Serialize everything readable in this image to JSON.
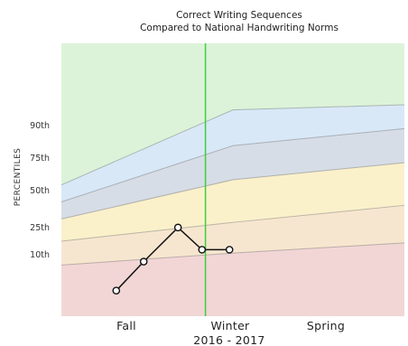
{
  "chart_data": {
    "type": "line",
    "title": "Correct Writing Sequences",
    "subtitle": "Compared to National Handwriting Norms",
    "ylabel": "PERCENTILES",
    "xlabel": "2016 - 2017",
    "x_categories": [
      "Fall",
      "Winter",
      "Spring"
    ],
    "percentile_ticks": [
      "90th",
      "75th",
      "50th",
      "25th",
      "10th"
    ],
    "bands": [
      {
        "name": "below-10th",
        "color": "#f2d6d6"
      },
      {
        "name": "10th-25th",
        "color": "#f7e6cf"
      },
      {
        "name": "25th-50th",
        "color": "#faf1cb"
      },
      {
        "name": "50th-75th",
        "color": "#d7dde6"
      },
      {
        "name": "75th-90th",
        "color": "#d8e8f7"
      },
      {
        "name": "above-90th",
        "color": "#dcf3d9"
      }
    ],
    "norm_lines": [
      {
        "percentile": "10th",
        "values": [
          10,
          17,
          23
        ]
      },
      {
        "percentile": "25th",
        "values": [
          24,
          35,
          45
        ]
      },
      {
        "percentile": "50th",
        "values": [
          37,
          60,
          70
        ]
      },
      {
        "percentile": "75th",
        "values": [
          47,
          80,
          90
        ]
      },
      {
        "percentile": "90th",
        "values": [
          57,
          101,
          104
        ]
      }
    ],
    "marker_line": {
      "x": 0.42,
      "color": "#3ccf3c"
    },
    "series": [
      {
        "points": [
          {
            "x": 0.16,
            "y": -5
          },
          {
            "x": 0.24,
            "y": 12
          },
          {
            "x": 0.34,
            "y": 32
          },
          {
            "x": 0.41,
            "y": 19
          },
          {
            "x": 0.49,
            "y": 19
          }
        ]
      }
    ]
  }
}
